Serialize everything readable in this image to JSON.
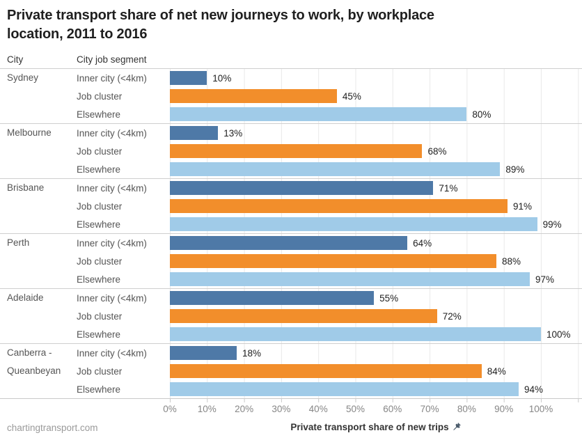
{
  "title_lines": [
    "Private transport share of net new journeys to work, by workplace",
    "location, 2011 to 2016"
  ],
  "column_headers": {
    "city": "City",
    "segment": "City job segment"
  },
  "chart_data": {
    "type": "bar",
    "orientation": "horizontal",
    "title": "Private transport share of net new journeys to work, by workplace location, 2011 to 2016",
    "xlabel": "Private transport share of new trips",
    "xlim": [
      0,
      100
    ],
    "ticks": [
      "0%",
      "10%",
      "20%",
      "30%",
      "40%",
      "50%",
      "60%",
      "70%",
      "80%",
      "90%",
      "100%"
    ],
    "grid": true,
    "segment_order": [
      "Inner city (<4km)",
      "Job cluster",
      "Elsewhere"
    ],
    "colors": [
      "#4e79a7",
      "#f28e2b",
      "#a0cbe8"
    ],
    "color_legend": {
      "Inner city (<4km)": "#4e79a7",
      "Job cluster": "#f28e2b",
      "Elsewhere": "#a0cbe8"
    },
    "groups": [
      {
        "city": "Sydney",
        "rows": [
          {
            "segment": "Inner city (<4km)",
            "value": 10,
            "label": "10%"
          },
          {
            "segment": "Job cluster",
            "value": 45,
            "label": "45%"
          },
          {
            "segment": "Elsewhere",
            "value": 80,
            "label": "80%"
          }
        ]
      },
      {
        "city": "Melbourne",
        "rows": [
          {
            "segment": "Inner city (<4km)",
            "value": 13,
            "label": "13%"
          },
          {
            "segment": "Job cluster",
            "value": 68,
            "label": "68%"
          },
          {
            "segment": "Elsewhere",
            "value": 89,
            "label": "89%"
          }
        ]
      },
      {
        "city": "Brisbane",
        "rows": [
          {
            "segment": "Inner city (<4km)",
            "value": 71,
            "label": "71%"
          },
          {
            "segment": "Job cluster",
            "value": 91,
            "label": "91%"
          },
          {
            "segment": "Elsewhere",
            "value": 99,
            "label": "99%"
          }
        ]
      },
      {
        "city": "Perth",
        "rows": [
          {
            "segment": "Inner city (<4km)",
            "value": 64,
            "label": "64%"
          },
          {
            "segment": "Job cluster",
            "value": 88,
            "label": "88%"
          },
          {
            "segment": "Elsewhere",
            "value": 97,
            "label": "97%"
          }
        ]
      },
      {
        "city": "Adelaide",
        "rows": [
          {
            "segment": "Inner city (<4km)",
            "value": 55,
            "label": "55%"
          },
          {
            "segment": "Job cluster",
            "value": 72,
            "label": "72%"
          },
          {
            "segment": "Elsewhere",
            "value": 100,
            "label": "100%"
          }
        ]
      },
      {
        "city": "Canberra - Queanbeyan",
        "rows": [
          {
            "segment": "Inner city (<4km)",
            "value": 18,
            "label": "18%"
          },
          {
            "segment": "Job cluster",
            "value": 84,
            "label": "84%"
          },
          {
            "segment": "Elsewhere",
            "value": 94,
            "label": "94%"
          }
        ]
      }
    ]
  },
  "axis": {
    "label": "Private transport share of new trips",
    "pin_icon": "pin-icon"
  },
  "footer": {
    "source": "chartingtransport.com"
  }
}
